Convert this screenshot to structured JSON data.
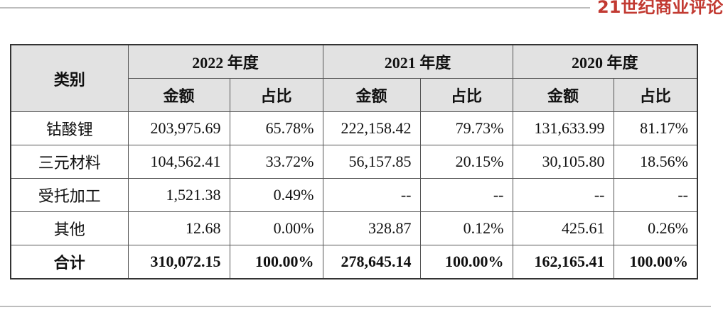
{
  "header": {
    "brand": "21世纪商业评论"
  },
  "table": {
    "category_header": "类别",
    "year_headers": [
      "2022 年度",
      "2021 年度",
      "2020 年度"
    ],
    "sub_headers": [
      "金额",
      "占比",
      "金额",
      "占比",
      "金额",
      "占比"
    ],
    "rows": [
      [
        "钴酸锂",
        "203,975.69",
        "65.78%",
        "222,158.42",
        "79.73%",
        "131,633.99",
        "81.17%"
      ],
      [
        "三元材料",
        "104,562.41",
        "33.72%",
        "56,157.85",
        "20.15%",
        "30,105.80",
        "18.56%"
      ],
      [
        "受托加工",
        "1,521.38",
        "0.49%",
        "--",
        "--",
        "--",
        "--"
      ],
      [
        "其他",
        "12.68",
        "0.00%",
        "328.87",
        "0.12%",
        "425.61",
        "0.26%"
      ],
      [
        "合计",
        "310,072.15",
        "100.00%",
        "278,645.14",
        "100.00%",
        "162,165.41",
        "100.00%"
      ]
    ]
  }
}
